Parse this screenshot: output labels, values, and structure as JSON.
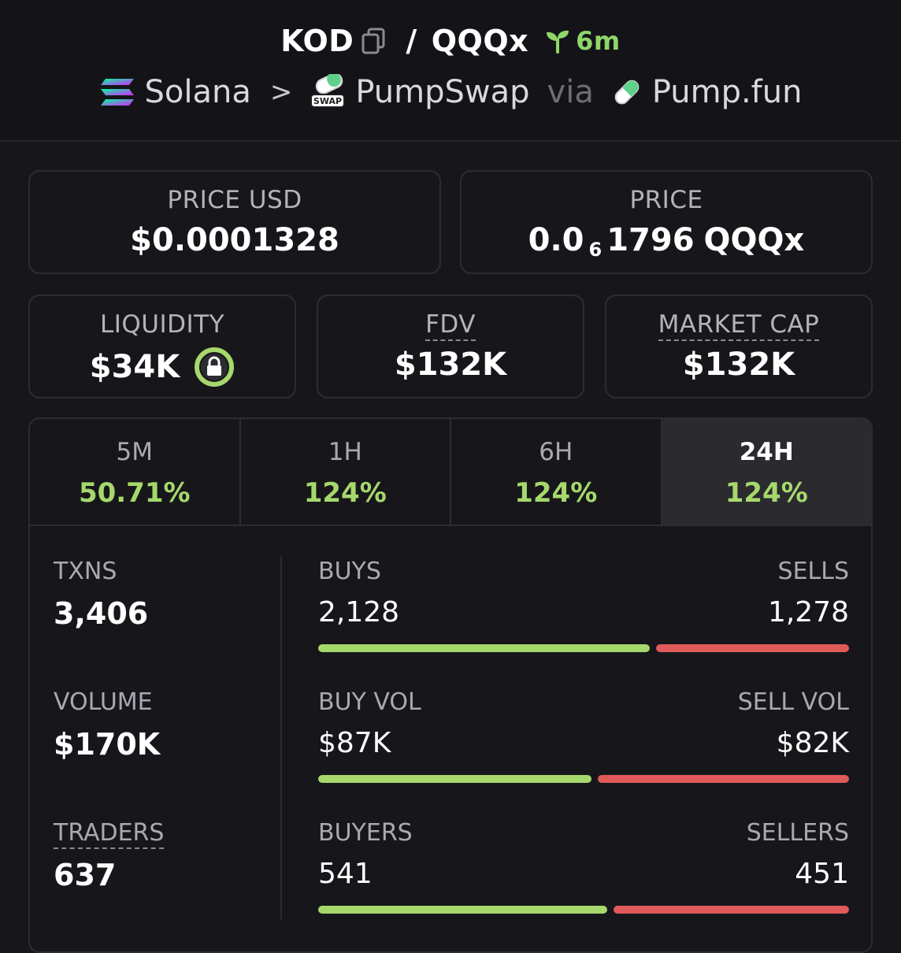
{
  "header": {
    "base_token": "KOD",
    "separator": "/",
    "quote_token": "QQQx",
    "age": "6m",
    "chain": "Solana",
    "chevron": ">",
    "dex": "PumpSwap",
    "dex_badge": "SWAP",
    "via": "via",
    "launchpad": "Pump.fun"
  },
  "price_usd": {
    "label": "PRICE USD",
    "value": "$0.0001328"
  },
  "price": {
    "label": "PRICE",
    "prefix": "0.0",
    "zeros": "6",
    "digits": "1796",
    "unit": "QQQx"
  },
  "liquidity": {
    "label": "LIQUIDITY",
    "value": "$34K"
  },
  "fdv": {
    "label": "FDV",
    "value": "$132K"
  },
  "market_cap": {
    "label": "MARKET CAP",
    "value": "$132K"
  },
  "tabs": [
    {
      "label": "5M",
      "value": "50.71%"
    },
    {
      "label": "1H",
      "value": "124%"
    },
    {
      "label": "6H",
      "value": "124%"
    },
    {
      "label": "24H",
      "value": "124%",
      "active": true
    }
  ],
  "stats": {
    "txns": {
      "label": "TXNS",
      "value": "3,406"
    },
    "volume": {
      "label": "VOLUME",
      "value": "$170K"
    },
    "traders": {
      "label": "TRADERS",
      "value": "637"
    },
    "buys": {
      "label": "BUYS",
      "value": "2,128",
      "share": 0.625
    },
    "sells": {
      "label": "SELLS",
      "value": "1,278"
    },
    "buy_vol": {
      "label": "BUY VOL",
      "value": "$87K",
      "share": 0.515
    },
    "sell_vol": {
      "label": "SELL VOL",
      "value": "$82K"
    },
    "buyers": {
      "label": "BUYERS",
      "value": "541",
      "share": 0.545
    },
    "sellers": {
      "label": "SELLERS",
      "value": "451"
    }
  },
  "colors": {
    "positive": "#a6d86c",
    "negative": "#e05a5a",
    "age": "#8fd66a"
  }
}
